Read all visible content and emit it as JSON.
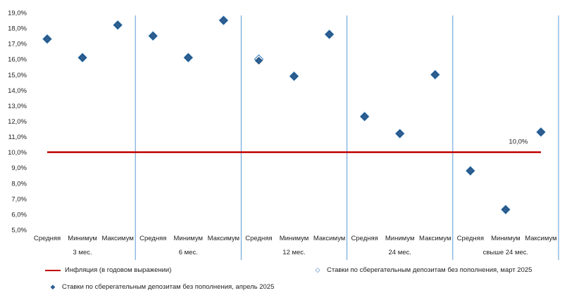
{
  "chart_data": {
    "type": "scatter",
    "ylim": [
      5,
      19
    ],
    "y_ticks": [
      "5,0%",
      "6,0%",
      "7,0%",
      "8,0%",
      "9,0%",
      "10,0%",
      "11,0%",
      "12,0%",
      "13,0%",
      "14,0%",
      "15,0%",
      "16,0%",
      "17,0%",
      "18,0%",
      "19,0%"
    ],
    "grid": false,
    "groups": [
      {
        "label": "3 мес.",
        "categories": [
          "Средняя",
          "Минимум",
          "Максимум"
        ]
      },
      {
        "label": "6 мес.",
        "categories": [
          "Средняя",
          "Минимум",
          "Максимум"
        ]
      },
      {
        "label": "12 мес.",
        "categories": [
          "Средняя",
          "Минимум",
          "Максимум"
        ]
      },
      {
        "label": "24 мес.",
        "categories": [
          "Средняя",
          "Минимум",
          "Максимум"
        ]
      },
      {
        "label": "свыше 24 мес.",
        "categories": [
          "Средняя",
          "Минимум",
          "Максимум"
        ]
      }
    ],
    "series": [
      {
        "name": "Инфляция (в годовом выражении)",
        "kind": "line",
        "value": 10.0,
        "color": "#c00000"
      },
      {
        "name": "Ставки по сберегательным депозитам без пополнения, март 2025",
        "kind": "marker-hollow",
        "color": "#2e75b6",
        "values": [
          17.3,
          16.1,
          18.2,
          17.5,
          16.1,
          18.5,
          16.0,
          14.9,
          17.6,
          12.3,
          11.2,
          15.0,
          8.8,
          6.3,
          11.3
        ]
      },
      {
        "name": "Ставки по сберегательным депозитам без пополнения, апрель 2025",
        "kind": "marker-filled",
        "color": "#2f5f93",
        "values": [
          17.3,
          16.1,
          18.2,
          17.5,
          16.1,
          18.5,
          15.9,
          14.9,
          17.6,
          12.3,
          11.2,
          15.0,
          8.8,
          6.3,
          11.3
        ]
      }
    ],
    "annotation": {
      "text": "10,0%",
      "value": 10.0
    },
    "legend_position": "bottom"
  }
}
